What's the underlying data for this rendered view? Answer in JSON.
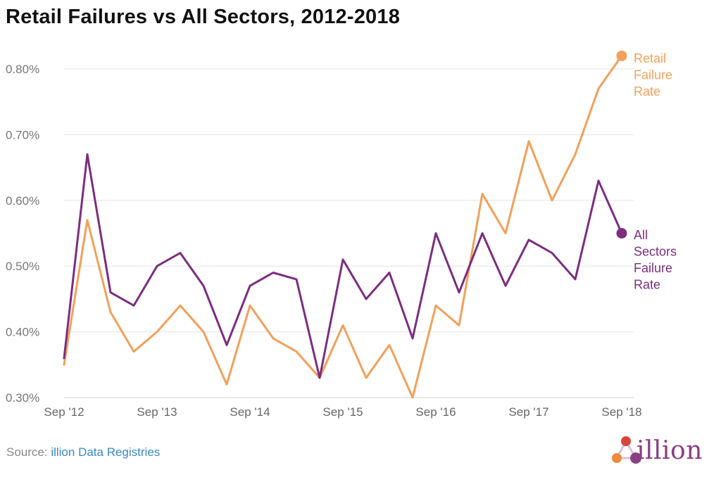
{
  "title": "Retail Failures vs All Sectors, 2012-2018",
  "footer": {
    "source_prefix": "Source:",
    "source_link": "illion Data Registries"
  },
  "logo": {
    "text": "illion",
    "icon": "illion-logo-icon"
  },
  "colors": {
    "retail": "#f2a05a",
    "all": "#7b2e7f",
    "grid": "#e3e3e3",
    "logo_orange": "#ef8a3a",
    "logo_red": "#d9453a",
    "logo_purple": "#8a3f83"
  },
  "chart_data": {
    "type": "line",
    "title": "Retail Failures vs All Sectors, 2012-2018",
    "ylim": [
      0.3,
      0.85
    ],
    "yticks": [
      0.3,
      0.4,
      0.5,
      0.6,
      0.7,
      0.8
    ],
    "ytick_labels": [
      "0.30%",
      "0.40%",
      "0.50%",
      "0.60%",
      "0.70%",
      "0.80%"
    ],
    "xtick_labels": [
      "Sep '12",
      "Sep '13",
      "Sep '14",
      "Sep '15",
      "Sep '16",
      "Sep '17",
      "Sep '18"
    ],
    "xtick_indices": [
      0,
      4,
      8,
      12,
      16,
      20,
      24
    ],
    "grid": true,
    "series": [
      {
        "name": "Retail Failure Rate",
        "label_lines": [
          "Retail",
          "Failure",
          "Rate"
        ],
        "color": "#f2a05a",
        "values": [
          0.35,
          0.57,
          0.43,
          0.37,
          0.4,
          0.44,
          0.4,
          0.32,
          0.44,
          0.39,
          0.37,
          0.33,
          0.41,
          0.33,
          0.38,
          0.3,
          0.44,
          0.41,
          0.61,
          0.55,
          0.69,
          0.6,
          0.67,
          0.77,
          0.82
        ]
      },
      {
        "name": "All Sectors Failure Rate",
        "label_lines": [
          "All",
          "Sectors",
          "Failure",
          "Rate"
        ],
        "color": "#7b2e7f",
        "values": [
          0.36,
          0.67,
          0.46,
          0.44,
          0.5,
          0.52,
          0.47,
          0.38,
          0.47,
          0.49,
          0.48,
          0.33,
          0.51,
          0.45,
          0.49,
          0.39,
          0.55,
          0.46,
          0.55,
          0.47,
          0.54,
          0.52,
          0.48,
          0.63,
          0.55
        ]
      }
    ]
  }
}
